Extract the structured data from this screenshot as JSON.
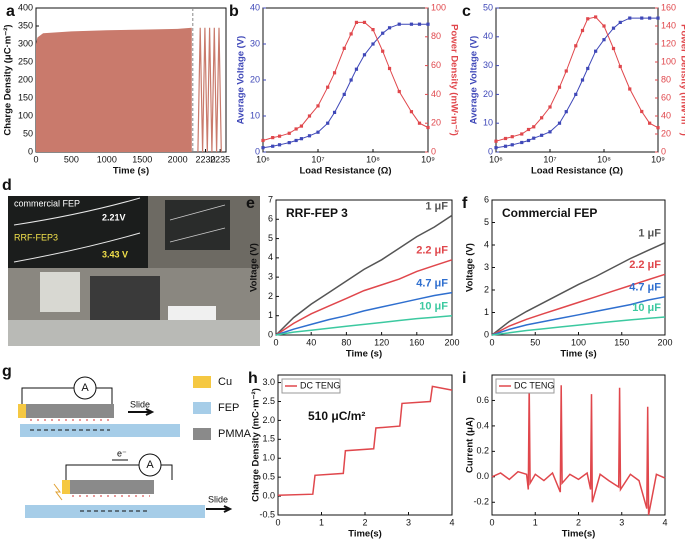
{
  "chart_data": [
    {
      "type": "area",
      "label": "a",
      "ylabel": "Charge Density (μC·m⁻²)",
      "xlabel": "Time (s)",
      "color": "#c97a6c",
      "ylim": [
        0,
        400
      ],
      "yticks": [
        0,
        50,
        100,
        150,
        200,
        250,
        300,
        350,
        400
      ],
      "segments": [
        {
          "type": "area",
          "xlim": [
            0,
            2200
          ],
          "xticks": [
            0,
            500,
            1000,
            1500,
            2000
          ],
          "x": [
            0,
            20,
            100,
            500,
            1000,
            1500,
            2000,
            2200
          ],
          "values": [
            300,
            318,
            330,
            335,
            338,
            340,
            342,
            345
          ]
        },
        {
          "type": "line",
          "xlim": [
            2226,
            2237
          ],
          "xticks": [
            2230,
            2235
          ],
          "x": [
            2227.4,
            2228.2,
            2229,
            2229.8,
            2230.6,
            2231.4,
            2232.2,
            2233,
            2233.8,
            2234.6,
            2235.4
          ],
          "values": [
            0,
            345,
            0,
            345,
            0,
            345,
            0,
            345,
            0,
            345,
            0
          ]
        }
      ]
    },
    {
      "type": "line",
      "label": "b",
      "xlabel": "Load Resistance (Ω)",
      "ylabel": "Average Voltage (V)",
      "y2label": "Power Density (mW·m⁻²)",
      "xscale": "log",
      "markers": true,
      "xlim": [
        1000000,
        1000000000
      ],
      "xticks": [
        {
          "value": 1000000,
          "label": "10⁶"
        },
        {
          "value": 10000000,
          "label": "10⁷"
        },
        {
          "value": 100000000,
          "label": "10⁸"
        },
        {
          "value": 1000000000,
          "label": "10⁹"
        }
      ],
      "ylim": [
        0,
        40
      ],
      "yticks": [
        0,
        10,
        20,
        30,
        40
      ],
      "y2lim": [
        0,
        100
      ],
      "y2ticks": [
        0,
        20,
        40,
        60,
        80,
        100
      ],
      "x": [
        1000000,
        1500000,
        2000000,
        3000000,
        4000000,
        5000000,
        7000000,
        10000000,
        15000000,
        20000000,
        30000000,
        40000000,
        50000000,
        70000000,
        100000000,
        150000000,
        200000000,
        300000000,
        500000000,
        700000000,
        1000000000
      ],
      "series": [
        {
          "name": "Average Voltage",
          "color": "#3f48b8",
          "values": [
            1.2,
            1.6,
            2,
            2.6,
            3.2,
            3.7,
            4.5,
            5.5,
            8,
            11,
            16,
            20,
            23,
            27,
            30,
            33,
            34.5,
            35.5,
            35.5,
            35.5,
            35.5
          ]
        },
        {
          "name": "Power Density",
          "color": "#e0474c",
          "axis": "y2",
          "values": [
            8,
            10,
            11,
            13,
            16,
            18,
            25,
            32,
            45,
            55,
            72,
            82,
            90,
            90,
            85,
            70,
            58,
            42,
            28,
            20,
            17
          ]
        }
      ]
    },
    {
      "type": "line",
      "label": "c",
      "xlabel": "Load Resistance (Ω)",
      "ylabel": "Average Voltage (V)",
      "y2label": "Power Density (mW·m⁻²)",
      "xscale": "log",
      "markers": true,
      "xlim": [
        1000000,
        1000000000
      ],
      "xticks": [
        {
          "value": 1000000,
          "label": "10⁶"
        },
        {
          "value": 10000000,
          "label": "10⁷"
        },
        {
          "value": 100000000,
          "label": "10⁸"
        },
        {
          "value": 1000000000,
          "label": "10⁹"
        }
      ],
      "ylim": [
        0,
        50
      ],
      "yticks": [
        0,
        10,
        20,
        30,
        40,
        50
      ],
      "y2lim": [
        0,
        160
      ],
      "y2ticks": [
        0,
        20,
        40,
        60,
        80,
        100,
        120,
        140,
        160
      ],
      "x": [
        1000000,
        1500000,
        2000000,
        3000000,
        4000000,
        5000000,
        7000000,
        10000000,
        15000000,
        20000000,
        30000000,
        40000000,
        50000000,
        70000000,
        100000000,
        150000000,
        200000000,
        300000000,
        500000000,
        700000000,
        1000000000
      ],
      "series": [
        {
          "name": "Average Voltage",
          "color": "#3f48b8",
          "values": [
            1.5,
            2,
            2.5,
            3.3,
            4,
            4.8,
            5.8,
            7,
            10,
            14,
            20,
            25,
            29,
            35,
            39,
            43,
            45,
            46.5,
            46.5,
            46.5,
            46.5
          ]
        },
        {
          "name": "Power Density",
          "color": "#e0474c",
          "axis": "y2",
          "values": [
            12,
            15,
            17,
            20,
            25,
            28,
            38,
            50,
            72,
            90,
            118,
            135,
            148,
            150,
            140,
            115,
            95,
            70,
            45,
            32,
            27
          ]
        }
      ]
    },
    {
      "type": "line",
      "label": "e",
      "title": "RRF-FEP 3",
      "xlabel": "Time (s)",
      "ylabel": "Voltage (V)",
      "legend": "inline",
      "xlim": [
        0,
        200
      ],
      "xticks": [
        0,
        40,
        80,
        120,
        160,
        200
      ],
      "ylim": [
        0,
        7
      ],
      "yticks": [
        0,
        1,
        2,
        3,
        4,
        5,
        6,
        7
      ],
      "x": [
        0,
        20,
        40,
        60,
        80,
        100,
        120,
        140,
        160,
        180,
        200
      ],
      "series": [
        {
          "name": "1 μF",
          "color": "#555555",
          "values": [
            0,
            0.9,
            1.6,
            2.2,
            2.8,
            3.4,
            3.9,
            4.5,
            5.1,
            5.6,
            6.2
          ]
        },
        {
          "name": "2.2 μF",
          "color": "#e0474c",
          "values": [
            0,
            0.6,
            1.1,
            1.5,
            1.9,
            2.3,
            2.6,
            2.9,
            3.3,
            3.6,
            3.9
          ]
        },
        {
          "name": "4.7 μF",
          "color": "#2f6fcf",
          "values": [
            0,
            0.3,
            0.55,
            0.8,
            1.0,
            1.25,
            1.45,
            1.65,
            1.85,
            2.05,
            2.2
          ]
        },
        {
          "name": "10 μF",
          "color": "#3cc9a0",
          "values": [
            0,
            0.15,
            0.25,
            0.35,
            0.45,
            0.55,
            0.65,
            0.75,
            0.85,
            0.92,
            1.0
          ]
        }
      ]
    },
    {
      "type": "line",
      "label": "f",
      "title": "Commercial FEP",
      "xlabel": "Time (s)",
      "ylabel": "Voltage (V)",
      "legend": "inline",
      "xlim": [
        0,
        200
      ],
      "xticks": [
        0,
        50,
        100,
        150,
        200
      ],
      "ylim": [
        0,
        6
      ],
      "yticks": [
        0,
        1,
        2,
        3,
        4,
        5,
        6
      ],
      "x": [
        0,
        20,
        40,
        60,
        80,
        100,
        120,
        140,
        160,
        180,
        200
      ],
      "series": [
        {
          "name": "1 μF",
          "color": "#555555",
          "values": [
            0,
            0.6,
            1.05,
            1.45,
            1.85,
            2.25,
            2.6,
            3.0,
            3.4,
            3.75,
            4.1
          ]
        },
        {
          "name": "2.2 μF",
          "color": "#e0474c",
          "values": [
            0,
            0.4,
            0.7,
            0.95,
            1.2,
            1.45,
            1.7,
            1.95,
            2.2,
            2.45,
            2.7
          ]
        },
        {
          "name": "4.7 μF",
          "color": "#2f6fcf",
          "values": [
            0,
            0.25,
            0.45,
            0.6,
            0.75,
            0.9,
            1.05,
            1.2,
            1.35,
            1.55,
            1.7
          ]
        },
        {
          "name": "10 μF",
          "color": "#3cc9a0",
          "values": [
            0,
            0.1,
            0.2,
            0.28,
            0.36,
            0.44,
            0.52,
            0.6,
            0.67,
            0.74,
            0.8
          ]
        }
      ]
    },
    {
      "type": "line",
      "label": "h",
      "xlabel": "Time(s)",
      "ylabel": "Charge Density (mC·m⁻²)",
      "legend": "upper left",
      "annotation": "510 μC/m²",
      "xlim": [
        0,
        4
      ],
      "xticks": [
        0,
        1,
        2,
        3,
        4
      ],
      "ylim": [
        -0.5,
        3.2
      ],
      "yticks": [
        -0.5,
        {
          "value": 0,
          "label": "0.0"
        },
        0.5,
        {
          "value": 1,
          "label": "1.0"
        },
        1.5,
        {
          "value": 2,
          "label": "2.0"
        },
        2.5,
        {
          "value": 3,
          "label": "3.0"
        }
      ],
      "x": [
        0,
        0.8,
        0.85,
        1.5,
        1.55,
        2.2,
        2.25,
        2.8,
        2.85,
        3.5,
        3.55,
        4
      ],
      "series": [
        {
          "name": "DC TENG",
          "color": "#e0474c",
          "values": [
            0.02,
            0.05,
            0.55,
            0.6,
            1.2,
            1.25,
            1.8,
            1.85,
            2.45,
            2.5,
            2.9,
            2.8
          ]
        }
      ]
    },
    {
      "type": "line",
      "label": "i",
      "xlabel": "Time(s)",
      "ylabel": "Current (μA)",
      "legend": "upper left",
      "xlim": [
        0,
        4
      ],
      "xticks": [
        0,
        1,
        2,
        3,
        4
      ],
      "ylim": [
        -0.3,
        0.8
      ],
      "yticks": [
        -0.2,
        {
          "value": 0,
          "label": "0.0"
        },
        0.2,
        0.4,
        0.6
      ],
      "x": [
        0,
        0.2,
        0.4,
        0.6,
        0.8,
        0.84,
        0.86,
        0.88,
        1.0,
        1.2,
        1.4,
        1.58,
        1.6,
        1.62,
        1.8,
        2.0,
        2.2,
        2.28,
        2.3,
        2.32,
        2.5,
        2.7,
        2.93,
        2.95,
        2.97,
        3.2,
        3.4,
        3.58,
        3.6,
        3.62,
        3.8,
        4.0
      ],
      "series": [
        {
          "name": "DC TENG",
          "color": "#e0474c",
          "values": [
            0,
            0.03,
            -0.02,
            0.04,
            0.02,
            -0.1,
            0.72,
            -0.05,
            0.02,
            -0.03,
            0.03,
            -0.12,
            0.72,
            -0.05,
            0.02,
            -0.02,
            0.03,
            -0.1,
            0.65,
            -0.2,
            0.02,
            -0.03,
            -0.08,
            0.7,
            -0.1,
            0.02,
            -0.03,
            -0.25,
            0.55,
            -0.3,
            0.02,
            -0.01
          ]
        }
      ]
    }
  ],
  "photo": {
    "label": "d",
    "screen_top": "commercial FEP",
    "reading_top": "2.21V",
    "screen_bottom": "RRF-FEP3",
    "reading_bottom": "3.43 V"
  },
  "diagram": {
    "label": "g",
    "top": {
      "meter": "A",
      "arrow": "Slide"
    },
    "bottom": {
      "meter": "A",
      "electron": "e⁻",
      "arrow": "Slide"
    },
    "legend": [
      "Cu",
      "FEP",
      "PMMA"
    ]
  }
}
